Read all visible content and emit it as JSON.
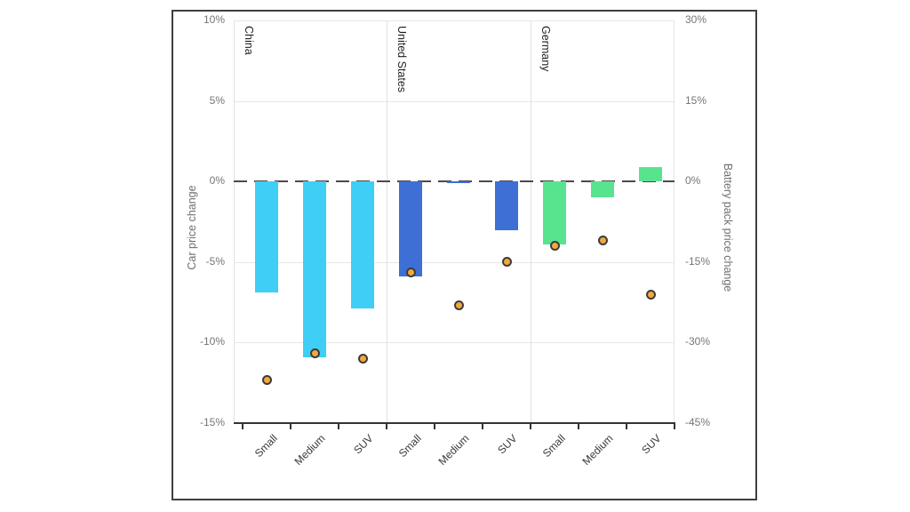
{
  "chart_data": {
    "type": "bar",
    "subtype": "grouped-facet bar chart with scatter markers on secondary axis",
    "title": "",
    "groups": [
      "China",
      "United States",
      "Germany"
    ],
    "categories": [
      "Small",
      "Medium",
      "SUV"
    ],
    "left_axis": {
      "title": "Car price change",
      "ticks": [
        "10%",
        "5%",
        "0%",
        "-5%",
        "-10%",
        "-15%"
      ],
      "tick_values": [
        10,
        5,
        0,
        -5,
        -10,
        -15
      ],
      "max": 10,
      "min": -15,
      "grid": true
    },
    "right_axis": {
      "title": "Battery pack price change",
      "ticks": [
        "30%",
        "15%",
        "0%",
        "-15%",
        "-30%",
        "-45%"
      ],
      "tick_values": [
        30,
        15,
        0,
        -15,
        -30,
        -45
      ],
      "max": 30,
      "min": -45
    },
    "series": [
      {
        "name": "Car price change (bars, left axis)",
        "type": "bar",
        "axis": "left",
        "values": [
          [
            -6.9,
            -10.9,
            -7.9
          ],
          [
            -5.9,
            -0.1,
            -3.0
          ],
          [
            -3.9,
            -1.0,
            0.9
          ]
        ],
        "colors": [
          "#3fcef5",
          "#3d6fd5",
          "#58e48e"
        ]
      },
      {
        "name": "Battery pack price change (dots, right axis)",
        "type": "scatter",
        "axis": "right",
        "values": [
          [
            -37,
            -32,
            -33
          ],
          [
            -17,
            -23,
            -15
          ],
          [
            -12,
            -11,
            -21
          ]
        ],
        "marker_color": "#f5a73b",
        "marker_outline": "#3c3c3c"
      }
    ],
    "zero_line": {
      "style": "dashed",
      "color": "#4a4a4a"
    },
    "layout": {
      "grid": true,
      "legend": "none",
      "facet_separators": true
    }
  }
}
